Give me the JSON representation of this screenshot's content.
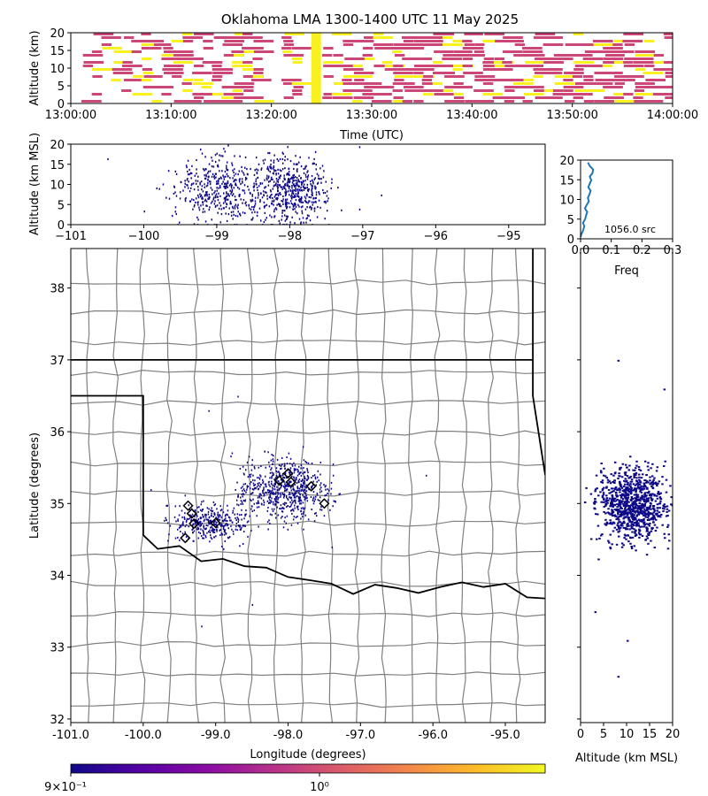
{
  "title": "Oklahoma LMA 1300-1400 UTC 11 May 2025",
  "colors": {
    "low": "#cc4778",
    "high": "#f9f020",
    "points": "#0d0887",
    "hist": "#1f77b4",
    "county": "#808080",
    "state": "#000000"
  },
  "colorbar": {
    "stops": [
      "#0d0887",
      "#5302a3",
      "#8b0aa5",
      "#b83289",
      "#db5c68",
      "#f48849",
      "#febd2a",
      "#f0f921"
    ],
    "tick_left": "9×10⁻¹",
    "tick_mid": "10⁰"
  },
  "chart_data": [
    {
      "id": "time_height",
      "type": "heatmap",
      "xlabel": "Time (UTC)",
      "ylabel": "Altitude (km)",
      "xticks": [
        "13:00:00",
        "13:10:00",
        "13:20:00",
        "13:30:00",
        "13:40:00",
        "13:50:00",
        "14:00:00"
      ],
      "yticks": [
        "0",
        "5",
        "10",
        "15",
        "20"
      ],
      "xlim": [
        "13:00:00",
        "14:00:00"
      ],
      "ylim": [
        0,
        20
      ],
      "active_minutes": [
        [
          1,
          7
        ],
        [
          7,
          19
        ],
        [
          21,
          23
        ],
        [
          25,
          30
        ],
        [
          30,
          60
        ]
      ],
      "peak_minute": 24.5
    },
    {
      "id": "lon_height",
      "type": "scatter",
      "ylabel": "Altitude (km MSL)",
      "xticks": [
        "−101",
        "−100",
        "−99",
        "−98",
        "−97",
        "−96",
        "−95"
      ],
      "yticks": [
        "0",
        "5",
        "10",
        "15",
        "20"
      ],
      "xlim": [
        -101.0,
        -94.5
      ],
      "ylim": [
        0,
        20
      ],
      "clusters": [
        {
          "lon": -98.95,
          "spread": 0.45,
          "weight": 0.45
        },
        {
          "lon": -98.0,
          "spread": 0.35,
          "weight": 0.55
        }
      ],
      "outliers": [
        [
          -100.5,
          16.5
        ],
        [
          -100.0,
          3.5
        ],
        [
          -97.3,
          3.8
        ],
        [
          -96.75,
          7.5
        ],
        [
          -97.05,
          19.5
        ],
        [
          -97.05,
          4.0
        ]
      ]
    },
    {
      "id": "height_hist",
      "type": "line",
      "xlabel": "Freq",
      "xticks": [
        "0.0",
        "0.1",
        "0.2",
        "0.3"
      ],
      "yticks": [
        "0",
        "5",
        "10",
        "15",
        "20"
      ],
      "xlim": [
        0,
        0.3
      ],
      "ylim": [
        0,
        20
      ],
      "label": "1056.0 src",
      "freq": [
        0.0,
        0.004,
        0.009,
        0.012,
        0.008,
        0.015,
        0.018,
        0.022,
        0.014,
        0.02,
        0.027,
        0.024,
        0.029,
        0.033,
        0.025,
        0.03,
        0.035,
        0.03,
        0.039,
        0.041,
        0.03,
        0.024
      ],
      "alt": [
        0.5,
        1.4,
        2.3,
        3.2,
        4.1,
        5.0,
        5.9,
        6.8,
        7.7,
        8.6,
        9.5,
        10.4,
        11.3,
        12.2,
        13.1,
        14.0,
        14.9,
        15.8,
        16.7,
        17.6,
        18.5,
        19.4
      ]
    },
    {
      "id": "plan_view",
      "type": "scatter",
      "xlabel": "Longitude (degrees)",
      "ylabel": "Latitude (degrees)",
      "xticks": [
        "-101.0",
        "-100.0",
        "-99.0",
        "-98.0",
        "-97.0",
        "-96.0",
        "-95.0"
      ],
      "yticks": [
        "32",
        "33",
        "34",
        "35",
        "36",
        "37",
        "38"
      ],
      "xlim": [
        -101.0,
        -94.45
      ],
      "ylim": [
        31.95,
        38.55
      ],
      "clusters": [
        {
          "lon": -99.1,
          "lat": 34.75,
          "slon": 0.35,
          "slat": 0.18,
          "weight": 0.35
        },
        {
          "lon": -98.05,
          "lat": 35.2,
          "slon": 0.45,
          "slat": 0.3,
          "weight": 0.65
        }
      ],
      "stations": [
        [
          -99.38,
          34.97
        ],
        [
          -99.33,
          34.86
        ],
        [
          -99.3,
          34.72
        ],
        [
          -99.42,
          34.52
        ],
        [
          -99.0,
          34.73
        ],
        [
          -98.0,
          35.42
        ],
        [
          -98.12,
          35.32
        ],
        [
          -97.96,
          35.3
        ],
        [
          -97.68,
          35.24
        ],
        [
          -97.5,
          35.0
        ]
      ]
    },
    {
      "id": "height_lat",
      "type": "scatter",
      "xlabel": "Altitude (km MSL)",
      "xticks": [
        "0",
        "5",
        "10",
        "15",
        "20"
      ],
      "xlim": [
        0,
        20
      ],
      "ylim": [
        31.95,
        38.55
      ]
    }
  ]
}
